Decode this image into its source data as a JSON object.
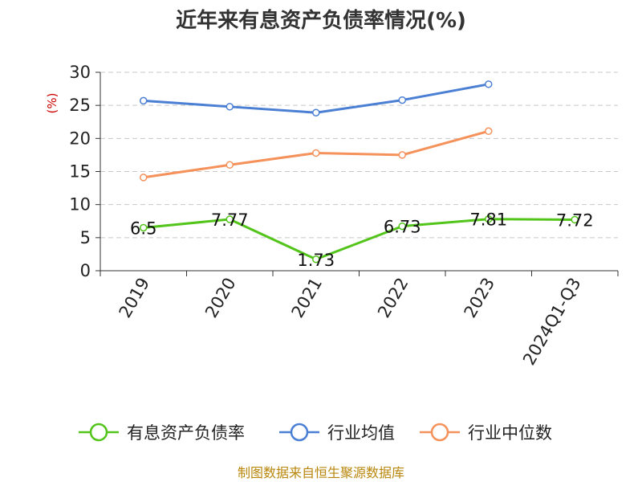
{
  "chart_data": {
    "type": "line",
    "title": "近年来有息资产负债率情况(%)",
    "ylabel": "(%)",
    "ylim": [
      0,
      30
    ],
    "yticks": [
      0,
      5,
      10,
      15,
      20,
      25,
      30
    ],
    "categories": [
      "2019",
      "2020",
      "2021",
      "2022",
      "2023",
      "2024Q1-Q3"
    ],
    "grid": true,
    "legend_position": "bottom",
    "series": [
      {
        "name": "有息资产负债率",
        "color": "#52c41a",
        "values": [
          6.5,
          7.77,
          1.73,
          6.73,
          7.81,
          7.72
        ],
        "labels": [
          "6.5",
          "7.77",
          "1.73",
          "6.73",
          "7.81",
          "7.72"
        ]
      },
      {
        "name": "行业均值",
        "color": "#4a7fd4",
        "values": [
          25.7,
          24.8,
          23.9,
          25.8,
          28.2,
          null
        ]
      },
      {
        "name": "行业中位数",
        "color": "#f5915a",
        "values": [
          14.1,
          16.0,
          17.8,
          17.5,
          21.1,
          null
        ]
      }
    ]
  },
  "source": "制图数据来自恒生聚源数据库"
}
